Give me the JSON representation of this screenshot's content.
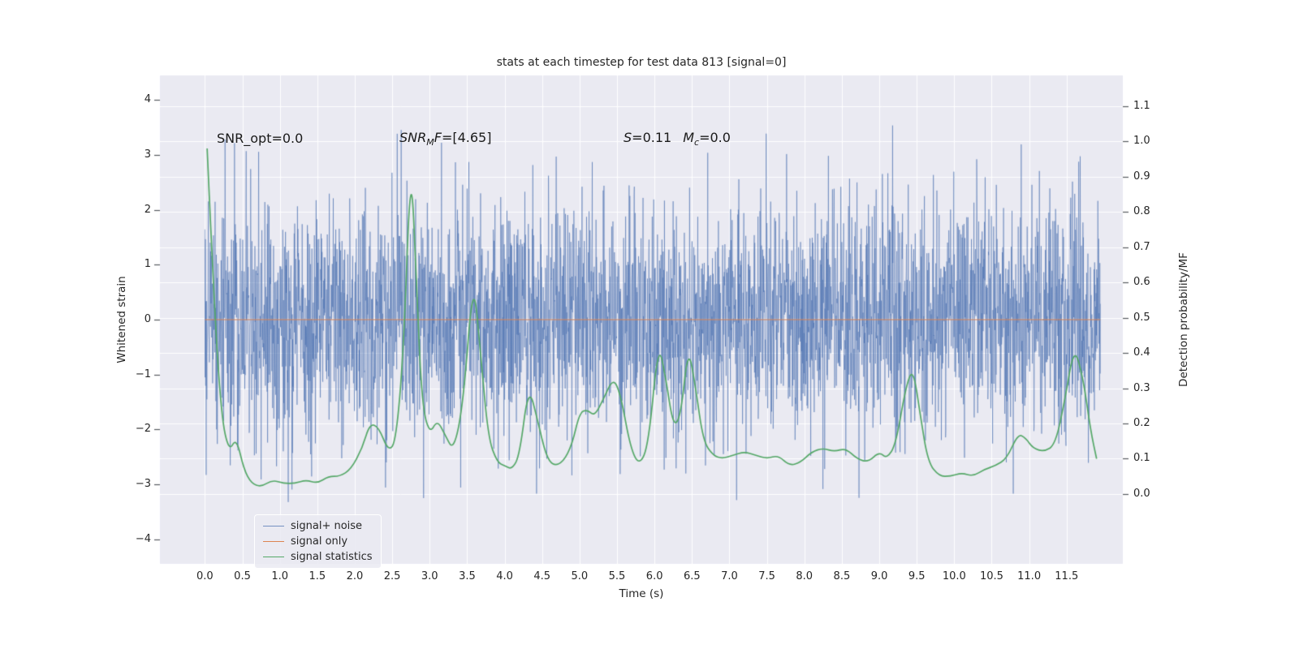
{
  "chart_data": {
    "type": "line",
    "title": "stats at each timestep for test data 813 [signal=0]",
    "xlabel": "Time (s)",
    "ylabel_left": "Whitened strain",
    "ylabel_right": "Detection probability/MF",
    "xlim": [
      -0.6,
      12.25
    ],
    "ylim_left": [
      -4.45,
      4.45
    ],
    "ylim_right": [
      -0.198,
      1.187
    ],
    "grid": "on",
    "xticks": {
      "values": [
        0,
        0.5,
        1,
        1.5,
        2,
        2.5,
        3,
        3.5,
        4,
        4.5,
        5,
        5.5,
        6,
        6.5,
        7,
        7.5,
        8,
        8.5,
        9,
        9.5,
        10,
        10.5,
        11,
        11.5
      ],
      "labels": [
        "0.0",
        "0.5",
        "1.0",
        "1.5",
        "2.0",
        "2.5",
        "3.0",
        "3.5",
        "4.0",
        "4.5",
        "5.0",
        "5.5",
        "6.0",
        "6.5",
        "7.0",
        "7.5",
        "8.0",
        "8.5",
        "9.0",
        "9.5",
        "10.0",
        "10.5",
        "11.0",
        "11.5"
      ]
    },
    "yticks_left": {
      "values": [
        -4,
        -3,
        -2,
        -1,
        0,
        1,
        2,
        3,
        4
      ],
      "labels": [
        "−4",
        "−3",
        "−2",
        "−1",
        "0",
        "1",
        "2",
        "3",
        "4"
      ]
    },
    "yticks_right": {
      "values": [
        0,
        0.1,
        0.2,
        0.3,
        0.4,
        0.5,
        0.6,
        0.7,
        0.8,
        0.9,
        1.0,
        1.1
      ],
      "labels": [
        "0.0",
        "0.1",
        "0.2",
        "0.3",
        "0.4",
        "0.5",
        "0.6",
        "0.7",
        "0.8",
        "0.9",
        "1.0",
        "1.1"
      ]
    },
    "colors": {
      "plot_bg": "#eaeaf2",
      "grid": "#ffffff",
      "noise": "#4c72b0",
      "noise_alpha": 0.6,
      "signal": "#dd8452",
      "stat": "#55a868",
      "text": "#262626",
      "tick_mark": "#55595f"
    },
    "series": [
      {
        "name": "signal+ noise",
        "type": "noise",
        "axis": "left",
        "seed": 813,
        "n": 3600,
        "std": 1.05,
        "clip": 4.3,
        "t_start": 0.0,
        "t_end": 11.95
      },
      {
        "name": "signal only",
        "type": "hline",
        "axis": "left",
        "value": 0.0,
        "t_start": 0.0,
        "t_end": 11.95
      },
      {
        "name": "signal statistics",
        "type": "curve",
        "axis": "right",
        "points": [
          [
            0.03,
            0.98
          ],
          [
            0.12,
            0.55
          ],
          [
            0.22,
            0.22
          ],
          [
            0.32,
            0.12
          ],
          [
            0.42,
            0.16
          ],
          [
            0.52,
            0.07
          ],
          [
            0.62,
            0.03
          ],
          [
            0.75,
            0.02
          ],
          [
            0.9,
            0.04
          ],
          [
            1.05,
            0.03
          ],
          [
            1.2,
            0.03
          ],
          [
            1.35,
            0.04
          ],
          [
            1.5,
            0.03
          ],
          [
            1.65,
            0.05
          ],
          [
            1.8,
            0.05
          ],
          [
            1.95,
            0.07
          ],
          [
            2.1,
            0.13
          ],
          [
            2.2,
            0.2
          ],
          [
            2.32,
            0.19
          ],
          [
            2.45,
            0.12
          ],
          [
            2.55,
            0.15
          ],
          [
            2.65,
            0.4
          ],
          [
            2.75,
            0.97
          ],
          [
            2.83,
            0.55
          ],
          [
            2.9,
            0.25
          ],
          [
            3.0,
            0.17
          ],
          [
            3.1,
            0.21
          ],
          [
            3.2,
            0.17
          ],
          [
            3.32,
            0.12
          ],
          [
            3.45,
            0.26
          ],
          [
            3.58,
            0.62
          ],
          [
            3.68,
            0.4
          ],
          [
            3.78,
            0.16
          ],
          [
            3.9,
            0.09
          ],
          [
            4.0,
            0.08
          ],
          [
            4.1,
            0.07
          ],
          [
            4.2,
            0.11
          ],
          [
            4.32,
            0.31
          ],
          [
            4.45,
            0.2
          ],
          [
            4.55,
            0.11
          ],
          [
            4.65,
            0.08
          ],
          [
            4.78,
            0.09
          ],
          [
            4.9,
            0.14
          ],
          [
            5.0,
            0.23
          ],
          [
            5.1,
            0.24
          ],
          [
            5.2,
            0.22
          ],
          [
            5.32,
            0.27
          ],
          [
            5.45,
            0.33
          ],
          [
            5.55,
            0.28
          ],
          [
            5.68,
            0.13
          ],
          [
            5.8,
            0.08
          ],
          [
            5.92,
            0.14
          ],
          [
            6.05,
            0.43
          ],
          [
            6.15,
            0.33
          ],
          [
            6.25,
            0.19
          ],
          [
            6.35,
            0.22
          ],
          [
            6.45,
            0.42
          ],
          [
            6.55,
            0.3
          ],
          [
            6.65,
            0.15
          ],
          [
            6.78,
            0.11
          ],
          [
            6.9,
            0.1
          ],
          [
            7.05,
            0.11
          ],
          [
            7.2,
            0.12
          ],
          [
            7.35,
            0.11
          ],
          [
            7.5,
            0.1
          ],
          [
            7.65,
            0.11
          ],
          [
            7.8,
            0.08
          ],
          [
            7.95,
            0.09
          ],
          [
            8.1,
            0.12
          ],
          [
            8.25,
            0.13
          ],
          [
            8.4,
            0.12
          ],
          [
            8.55,
            0.13
          ],
          [
            8.7,
            0.1
          ],
          [
            8.85,
            0.09
          ],
          [
            9.0,
            0.12
          ],
          [
            9.1,
            0.1
          ],
          [
            9.22,
            0.14
          ],
          [
            9.35,
            0.3
          ],
          [
            9.45,
            0.36
          ],
          [
            9.55,
            0.22
          ],
          [
            9.65,
            0.09
          ],
          [
            9.8,
            0.05
          ],
          [
            9.95,
            0.05
          ],
          [
            10.1,
            0.06
          ],
          [
            10.25,
            0.05
          ],
          [
            10.4,
            0.07
          ],
          [
            10.55,
            0.08
          ],
          [
            10.7,
            0.1
          ],
          [
            10.85,
            0.17
          ],
          [
            10.95,
            0.16
          ],
          [
            11.05,
            0.13
          ],
          [
            11.2,
            0.12
          ],
          [
            11.35,
            0.14
          ],
          [
            11.48,
            0.27
          ],
          [
            11.6,
            0.42
          ],
          [
            11.72,
            0.33
          ],
          [
            11.82,
            0.18
          ],
          [
            11.9,
            0.1
          ]
        ]
      }
    ],
    "legend": {
      "position": "lower-left",
      "entries": [
        "signal+ noise",
        "signal only",
        "signal statistics"
      ]
    }
  },
  "annotations": {
    "snr_opt": "SNR_opt=0.0",
    "snr_mf": {
      "p1": "SNR",
      "sub": "M",
      "p2": "F",
      "p3": "=[4.65]"
    },
    "stats": {
      "s": "S",
      "s_val": "=0.11",
      "m": "M",
      "m_sub": "c",
      "m_val": "=0.0"
    }
  }
}
